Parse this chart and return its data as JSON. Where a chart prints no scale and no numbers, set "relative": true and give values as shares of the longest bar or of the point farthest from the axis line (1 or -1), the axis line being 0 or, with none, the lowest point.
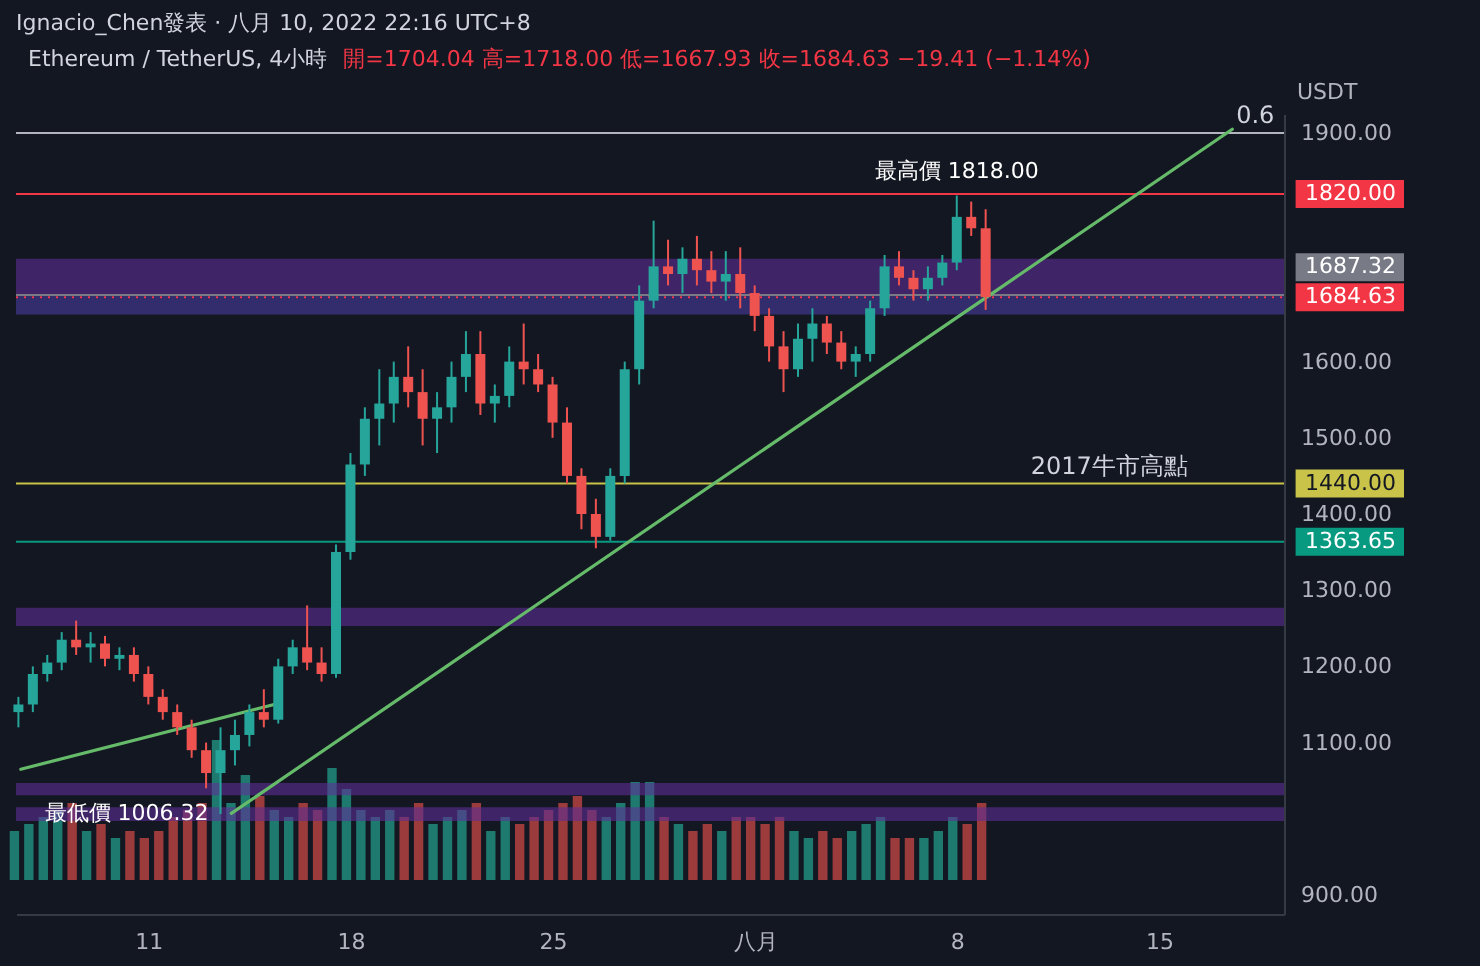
{
  "chart_data": [
    {
      "type": "candlestick",
      "title": "Ethereum / TetherUS, 4小時",
      "subtitle": "開=1704.04 高=1718.00 低=1667.93 收=1684.63 −19.41 (−1.14%)",
      "ylabel": "USDT",
      "x": [
        "2022-07-06T12:00",
        "2022-07-07T00:00",
        "2022-07-07T12:00",
        "2022-07-08T00:00",
        "2022-07-08T12:00",
        "2022-07-09T00:00",
        "2022-07-09T12:00",
        "2022-07-10T00:00",
        "2022-07-10T12:00",
        "2022-07-11T00:00",
        "2022-07-11T12:00",
        "2022-07-12T00:00",
        "2022-07-12T12:00",
        "2022-07-13T00:00",
        "2022-07-13T12:00",
        "2022-07-14T00:00",
        "2022-07-14T12:00",
        "2022-07-15T00:00",
        "2022-07-15T12:00",
        "2022-07-16T00:00",
        "2022-07-16T12:00",
        "2022-07-17T00:00",
        "2022-07-17T12:00",
        "2022-07-18T00:00",
        "2022-07-18T12:00",
        "2022-07-19T00:00",
        "2022-07-19T12:00",
        "2022-07-20T00:00",
        "2022-07-20T12:00",
        "2022-07-21T00:00",
        "2022-07-21T12:00",
        "2022-07-22T00:00",
        "2022-07-22T12:00",
        "2022-07-23T00:00",
        "2022-07-23T12:00",
        "2022-07-24T00:00",
        "2022-07-24T12:00",
        "2022-07-25T00:00",
        "2022-07-25T12:00",
        "2022-07-26T00:00",
        "2022-07-26T12:00",
        "2022-07-27T00:00",
        "2022-07-27T12:00",
        "2022-07-28T00:00",
        "2022-07-28T12:00",
        "2022-07-29T00:00",
        "2022-07-29T12:00",
        "2022-07-30T00:00",
        "2022-07-30T12:00",
        "2022-07-31T00:00",
        "2022-07-31T12:00",
        "2022-08-01T00:00",
        "2022-08-01T12:00",
        "2022-08-02T00:00",
        "2022-08-02T12:00",
        "2022-08-03T00:00",
        "2022-08-03T12:00",
        "2022-08-04T00:00",
        "2022-08-04T12:00",
        "2022-08-05T00:00",
        "2022-08-05T12:00",
        "2022-08-06T00:00",
        "2022-08-06T12:00",
        "2022-08-07T00:00",
        "2022-08-07T12:00",
        "2022-08-08T00:00",
        "2022-08-08T12:00",
        "2022-08-09T00:00"
      ],
      "ohlc": [
        [
          1140,
          1160,
          1120,
          1150
        ],
        [
          1150,
          1200,
          1140,
          1190
        ],
        [
          1190,
          1215,
          1180,
          1205
        ],
        [
          1205,
          1245,
          1195,
          1235
        ],
        [
          1235,
          1260,
          1215,
          1225
        ],
        [
          1225,
          1245,
          1205,
          1230
        ],
        [
          1230,
          1240,
          1200,
          1210
        ],
        [
          1210,
          1225,
          1195,
          1215
        ],
        [
          1215,
          1225,
          1180,
          1190
        ],
        [
          1190,
          1200,
          1150,
          1160
        ],
        [
          1160,
          1170,
          1130,
          1140
        ],
        [
          1140,
          1150,
          1110,
          1120
        ],
        [
          1120,
          1130,
          1080,
          1090
        ],
        [
          1090,
          1100,
          1040,
          1060
        ],
        [
          1060,
          1120,
          1006.32,
          1090
        ],
        [
          1090,
          1130,
          1070,
          1110
        ],
        [
          1110,
          1150,
          1095,
          1140
        ],
        [
          1140,
          1170,
          1120,
          1130
        ],
        [
          1130,
          1210,
          1125,
          1200
        ],
        [
          1200,
          1235,
          1190,
          1225
        ],
        [
          1225,
          1280,
          1195,
          1205
        ],
        [
          1205,
          1225,
          1180,
          1190
        ],
        [
          1190,
          1360,
          1185,
          1350
        ],
        [
          1350,
          1480,
          1340,
          1465
        ],
        [
          1465,
          1540,
          1450,
          1525
        ],
        [
          1525,
          1590,
          1490,
          1545
        ],
        [
          1545,
          1600,
          1520,
          1580
        ],
        [
          1580,
          1620,
          1540,
          1560
        ],
        [
          1560,
          1590,
          1490,
          1525
        ],
        [
          1525,
          1560,
          1480,
          1540
        ],
        [
          1540,
          1600,
          1520,
          1580
        ],
        [
          1580,
          1640,
          1560,
          1610
        ],
        [
          1610,
          1640,
          1530,
          1545
        ],
        [
          1545,
          1570,
          1520,
          1555
        ],
        [
          1555,
          1620,
          1540,
          1600
        ],
        [
          1600,
          1650,
          1570,
          1590
        ],
        [
          1590,
          1610,
          1560,
          1570
        ],
        [
          1570,
          1580,
          1500,
          1520
        ],
        [
          1520,
          1540,
          1440,
          1450
        ],
        [
          1450,
          1460,
          1380,
          1400
        ],
        [
          1400,
          1420,
          1355,
          1370
        ],
        [
          1370,
          1460,
          1365,
          1450
        ],
        [
          1450,
          1600,
          1440,
          1590
        ],
        [
          1590,
          1700,
          1570,
          1680
        ],
        [
          1680,
          1785,
          1670,
          1725
        ],
        [
          1725,
          1760,
          1700,
          1715
        ],
        [
          1715,
          1750,
          1690,
          1735
        ],
        [
          1735,
          1765,
          1700,
          1720
        ],
        [
          1720,
          1745,
          1690,
          1705
        ],
        [
          1705,
          1745,
          1680,
          1715
        ],
        [
          1715,
          1750,
          1670,
          1690
        ],
        [
          1690,
          1700,
          1640,
          1660
        ],
        [
          1660,
          1670,
          1600,
          1620
        ],
        [
          1620,
          1640,
          1560,
          1590
        ],
        [
          1590,
          1650,
          1580,
          1630
        ],
        [
          1630,
          1670,
          1600,
          1650
        ],
        [
          1650,
          1660,
          1610,
          1625
        ],
        [
          1625,
          1640,
          1590,
          1600
        ],
        [
          1600,
          1620,
          1580,
          1610
        ],
        [
          1610,
          1680,
          1600,
          1670
        ],
        [
          1670,
          1740,
          1660,
          1725
        ],
        [
          1725,
          1745,
          1700,
          1710
        ],
        [
          1710,
          1720,
          1680,
          1695
        ],
        [
          1695,
          1725,
          1680,
          1710
        ],
        [
          1710,
          1740,
          1700,
          1730
        ],
        [
          1730,
          1818,
          1720,
          1790
        ],
        [
          1790,
          1810,
          1765,
          1775
        ],
        [
          1775,
          1800,
          1667.93,
          1684.63
        ]
      ],
      "colors": [
        "#26a69a",
        "#26a69a",
        "#26a69a",
        "#26a69a",
        "#ef5350",
        "#26a69a",
        "#ef5350",
        "#26a69a",
        "#ef5350",
        "#ef5350",
        "#ef5350",
        "#ef5350",
        "#ef5350",
        "#ef5350",
        "#26a69a",
        "#26a69a",
        "#26a69a",
        "#ef5350",
        "#26a69a",
        "#26a69a",
        "#ef5350",
        "#ef5350",
        "#26a69a",
        "#26a69a",
        "#26a69a",
        "#26a69a",
        "#26a69a",
        "#ef5350",
        "#ef5350",
        "#26a69a",
        "#26a69a",
        "#26a69a",
        "#ef5350",
        "#26a69a",
        "#26a69a",
        "#ef5350",
        "#ef5350",
        "#ef5350",
        "#ef5350",
        "#ef5350",
        "#ef5350",
        "#26a69a",
        "#26a69a",
        "#26a69a",
        "#26a69a",
        "#ef5350",
        "#26a69a",
        "#ef5350",
        "#ef5350",
        "#26a69a",
        "#ef5350",
        "#ef5350",
        "#ef5350",
        "#ef5350",
        "#26a69a",
        "#26a69a",
        "#ef5350",
        "#ef5350",
        "#26a69a",
        "#26a69a",
        "#26a69a",
        "#ef5350",
        "#ef5350",
        "#26a69a",
        "#26a69a",
        "#26a69a",
        "#ef5350",
        "#ef5350"
      ],
      "series": [
        {
          "type": "line",
          "color": "#66bb6a",
          "x": [
            "2022-07-06T14:00",
            "2022-07-15T11:00"
          ],
          "values": [
            1065,
            1151
          ]
        },
        {
          "type": "line",
          "color": "#66bb6a",
          "x": [
            "2022-07-13T21:00",
            "2022-08-17T13:00"
          ],
          "values": [
            1007,
            1905
          ]
        }
      ],
      "xlim": [
        "2022-07-06T10:00",
        "2022-08-19T08:00"
      ],
      "xticks": [
        {
          "value": "2022-07-11T00:00",
          "label": "11"
        },
        {
          "value": "2022-07-18T00:00",
          "label": "18"
        },
        {
          "value": "2022-07-25T00:00",
          "label": "25"
        },
        {
          "value": "2022-08-01T00:00",
          "label": "八月"
        },
        {
          "value": "2022-08-08T00:00",
          "label": "8"
        },
        {
          "value": "2022-08-15T00:00",
          "label": "15"
        }
      ],
      "ylim": [
        875,
        1925
      ],
      "yticks": [
        {
          "value": 900,
          "label": "900.00"
        },
        {
          "value": 1100,
          "label": "1100.00"
        },
        {
          "value": 1200,
          "label": "1200.00"
        },
        {
          "value": 1300,
          "label": "1300.00"
        },
        {
          "value": 1400,
          "label": "1400.00"
        },
        {
          "value": 1500,
          "label": "1500.00"
        },
        {
          "value": 1600,
          "label": "1600.00"
        },
        {
          "value": 1900,
          "label": "1900.00"
        }
      ],
      "bands": [
        {
          "axis": "y",
          "from": 1688,
          "to": 1735,
          "color": "#5e2f96"
        },
        {
          "axis": "y",
          "from": 1662,
          "to": 1688,
          "color": "#4b3ca0"
        },
        {
          "axis": "y",
          "from": 1253,
          "to": 1277,
          "color": "#5e2f96"
        },
        {
          "axis": "y",
          "from": 1031,
          "to": 1047,
          "color": "#5e2f96"
        },
        {
          "axis": "y",
          "from": 997,
          "to": 1015,
          "color": "#5e2f96"
        }
      ],
      "ref_lines": [
        {
          "axis": "y",
          "value": 1900,
          "color": "#b2b5be"
        },
        {
          "axis": "y",
          "value": 1820,
          "label": "1820.00",
          "color": "#f23645"
        },
        {
          "axis": "y",
          "value": 1687.32,
          "label": "1687.32",
          "color": "#787b86"
        },
        {
          "axis": "y",
          "value": 1684.63,
          "label": "1684.63",
          "color": "#f23645",
          "line_style": "dotted"
        },
        {
          "axis": "y",
          "value": 1440,
          "label": "1440.00",
          "color": "#c9c34a"
        },
        {
          "axis": "y",
          "value": 1363.65,
          "label": "1363.65",
          "color": "#089981"
        }
      ],
      "annotations": [
        "Ignacio_Chen發表 · 八月 10, 2022 22:16 UTC+8",
        {
          "text": "0.6",
          "x": "2022-08-19T00:00",
          "y": 1900
        },
        {
          "text": "2017牛市高點",
          "x": "2022-08-16T00:00",
          "y": 1440
        },
        {
          "text": "最高價 1818.00",
          "x": "2022-08-08T00:00",
          "y": 1818
        },
        {
          "text": "最低價 1006.32",
          "x": "2022-07-13T12:00",
          "y": 1006.32
        }
      ]
    },
    {
      "type": "bar",
      "relative": true,
      "categories": [
        null,
        null,
        null,
        null,
        null,
        null,
        null,
        null,
        null,
        null,
        null,
        null,
        null,
        null,
        null,
        null,
        null,
        null,
        null,
        null,
        null,
        null,
        null,
        null,
        null,
        null,
        null,
        null,
        null,
        null,
        null,
        null,
        null,
        null,
        null,
        null,
        null,
        null,
        null,
        null,
        null,
        null,
        null,
        null,
        null,
        null,
        null,
        null,
        null,
        null,
        null,
        null,
        null,
        null,
        null,
        null,
        null,
        null,
        null,
        null,
        null,
        null,
        null,
        null,
        null,
        null,
        null,
        null
      ],
      "values": [
        0.35,
        0.4,
        0.45,
        0.5,
        0.55,
        0.35,
        0.4,
        0.3,
        0.35,
        0.3,
        0.35,
        0.45,
        0.5,
        0.55,
        1.0,
        0.55,
        0.75,
        0.6,
        0.5,
        0.45,
        0.55,
        0.5,
        0.8,
        0.65,
        0.5,
        0.45,
        0.5,
        0.45,
        0.55,
        0.4,
        0.45,
        0.5,
        0.55,
        0.35,
        0.45,
        0.4,
        0.45,
        0.5,
        0.55,
        0.6,
        0.5,
        0.45,
        0.55,
        0.7,
        0.7,
        0.45,
        0.4,
        0.35,
        0.4,
        0.35,
        0.45,
        0.45,
        0.4,
        0.45,
        0.35,
        0.3,
        0.35,
        0.3,
        0.35,
        0.4,
        0.45,
        0.3,
        0.3,
        0.3,
        0.35,
        0.45,
        0.4,
        0.55
      ],
      "colors": [
        "#1e7a6f",
        "#1e7a6f",
        "#1e7a6f",
        "#1e7a6f",
        "#9b3b3b",
        "#1e7a6f",
        "#9b3b3b",
        "#1e7a6f",
        "#9b3b3b",
        "#9b3b3b",
        "#9b3b3b",
        "#9b3b3b",
        "#9b3b3b",
        "#9b3b3b",
        "#1e7a6f",
        "#1e7a6f",
        "#1e7a6f",
        "#9b3b3b",
        "#1e7a6f",
        "#1e7a6f",
        "#9b3b3b",
        "#9b3b3b",
        "#1e7a6f",
        "#1e7a6f",
        "#1e7a6f",
        "#1e7a6f",
        "#1e7a6f",
        "#9b3b3b",
        "#9b3b3b",
        "#1e7a6f",
        "#1e7a6f",
        "#1e7a6f",
        "#9b3b3b",
        "#1e7a6f",
        "#1e7a6f",
        "#9b3b3b",
        "#9b3b3b",
        "#9b3b3b",
        "#9b3b3b",
        "#9b3b3b",
        "#9b3b3b",
        "#1e7a6f",
        "#1e7a6f",
        "#1e7a6f",
        "#1e7a6f",
        "#9b3b3b",
        "#1e7a6f",
        "#9b3b3b",
        "#9b3b3b",
        "#1e7a6f",
        "#9b3b3b",
        "#9b3b3b",
        "#9b3b3b",
        "#9b3b3b",
        "#1e7a6f",
        "#1e7a6f",
        "#9b3b3b",
        "#9b3b3b",
        "#1e7a6f",
        "#1e7a6f",
        "#1e7a6f",
        "#9b3b3b",
        "#9b3b3b",
        "#1e7a6f",
        "#1e7a6f",
        "#1e7a6f",
        "#9b3b3b",
        "#9b3b3b"
      ]
    }
  ]
}
